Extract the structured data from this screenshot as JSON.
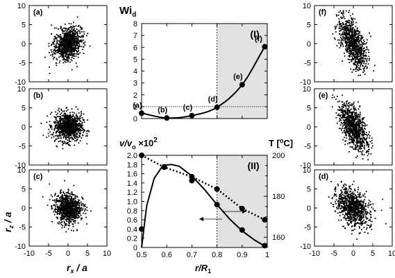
{
  "chart_data": [
    {
      "type": "line",
      "panel_label": "(I)",
      "ylabel": "Wi",
      "ylabel_sub": "d",
      "xlabel": "",
      "xlim": [
        0.5,
        1.0
      ],
      "ylim": [
        0,
        8
      ],
      "xticks": [
        0.5,
        0.6,
        0.7,
        0.8,
        0.9,
        1.0
      ],
      "yticks": [
        0,
        1,
        2,
        3,
        4,
        5,
        6,
        7,
        8
      ],
      "shaded_from_x": 0.8,
      "reference_line_y": 1,
      "series": [
        {
          "x": [
            0.5,
            0.6,
            0.7,
            0.8,
            0.9,
            0.99
          ],
          "y": [
            0.45,
            0.05,
            0.25,
            0.95,
            2.85,
            6.05
          ],
          "point_labels": [
            "(a)",
            "(b)",
            "(c)",
            "(d)",
            "(e)",
            "(f)"
          ]
        }
      ]
    },
    {
      "type": "line",
      "panel_label": "(II)",
      "xlabel": "r/R",
      "xlabel_sub": "1",
      "ylabel_left": "v/v",
      "ylabel_left_sub": "o",
      "ylabel_left_suffix": " ×10",
      "ylabel_left_sup": "2",
      "ylabel_right": "T [",
      "ylabel_right_sup": "o",
      "ylabel_right_suffix": "C]",
      "xlim": [
        0.5,
        1.0
      ],
      "ylim_left": [
        0,
        2.0
      ],
      "ylim_right": [
        155,
        200
      ],
      "xticks": [
        0.5,
        0.6,
        0.7,
        0.8,
        0.9,
        1.0
      ],
      "xtick_labels": [
        "0.5",
        "0.6",
        "0.7",
        "0.8",
        "0.9",
        "1"
      ],
      "yticks_left": [
        0,
        0.2,
        0.4,
        0.6,
        0.8,
        1.0,
        1.2,
        1.4,
        1.6,
        1.8,
        2.0
      ],
      "ytick_left_labels": [
        "0",
        "0.2",
        "0.4",
        "0.6",
        "0.8",
        "1.0",
        "1.2",
        "1.4",
        "1.6",
        "1.8",
        "2.0"
      ],
      "yticks_right": [
        160,
        180,
        200
      ],
      "shaded_from_x": 0.8,
      "series": [
        {
          "axis": "left",
          "style": "solid",
          "x": [
            0.5,
            0.59,
            0.7,
            0.8,
            0.9,
            0.99
          ],
          "y": [
            0.4,
            1.75,
            1.45,
            0.93,
            0.38,
            0.04
          ],
          "curve_x": [
            0.5,
            0.52,
            0.55,
            0.58,
            0.6,
            0.62,
            0.65,
            0.7,
            0.75,
            0.8,
            0.85,
            0.9,
            0.95,
            0.99
          ],
          "curve_y": [
            0.0,
            0.9,
            1.5,
            1.74,
            1.79,
            1.8,
            1.76,
            1.55,
            1.26,
            0.93,
            0.62,
            0.36,
            0.16,
            0.03
          ]
        },
        {
          "axis": "right",
          "style": "dotted",
          "x": [
            0.5,
            0.59,
            0.7,
            0.8,
            0.9,
            0.99
          ],
          "y": [
            200,
            194.2,
            189.5,
            183.5,
            174,
            168.5
          ]
        }
      ]
    },
    {
      "type": "scatter",
      "panels": [
        {
          "label": "(a)",
          "wi": 0.45,
          "tilt_deg": 25,
          "sx": 1.7,
          "sy": 2.25
        },
        {
          "label": "(b)",
          "wi": 0.05,
          "tilt_deg": 5,
          "sx": 1.85,
          "sy": 1.85
        },
        {
          "label": "(c)",
          "wi": 0.25,
          "tilt_deg": -12,
          "sx": 1.7,
          "sy": 2.0
        },
        {
          "label": "(d)",
          "wi": 0.95,
          "tilt_deg": -35,
          "sx": 1.75,
          "sy": 2.7
        },
        {
          "label": "(e)",
          "wi": 2.85,
          "tilt_deg": -22,
          "sx": 1.45,
          "sy": 3.2
        },
        {
          "label": "(f)",
          "wi": 6.05,
          "tilt_deg": -20,
          "sx": 1.35,
          "sy": 3.5
        }
      ],
      "xlim": [
        -10,
        10
      ],
      "ylim": [
        -10,
        10
      ],
      "xticks": [
        -10,
        -5,
        0,
        5,
        10
      ],
      "yticks": [
        -10,
        -5,
        0,
        5,
        10
      ],
      "xlabel": "r",
      "xlabel_sub": "x",
      "xlabel_suffix": " / a",
      "ylabel": "r",
      "ylabel_sub": "z",
      "ylabel_suffix": " / a"
    }
  ]
}
